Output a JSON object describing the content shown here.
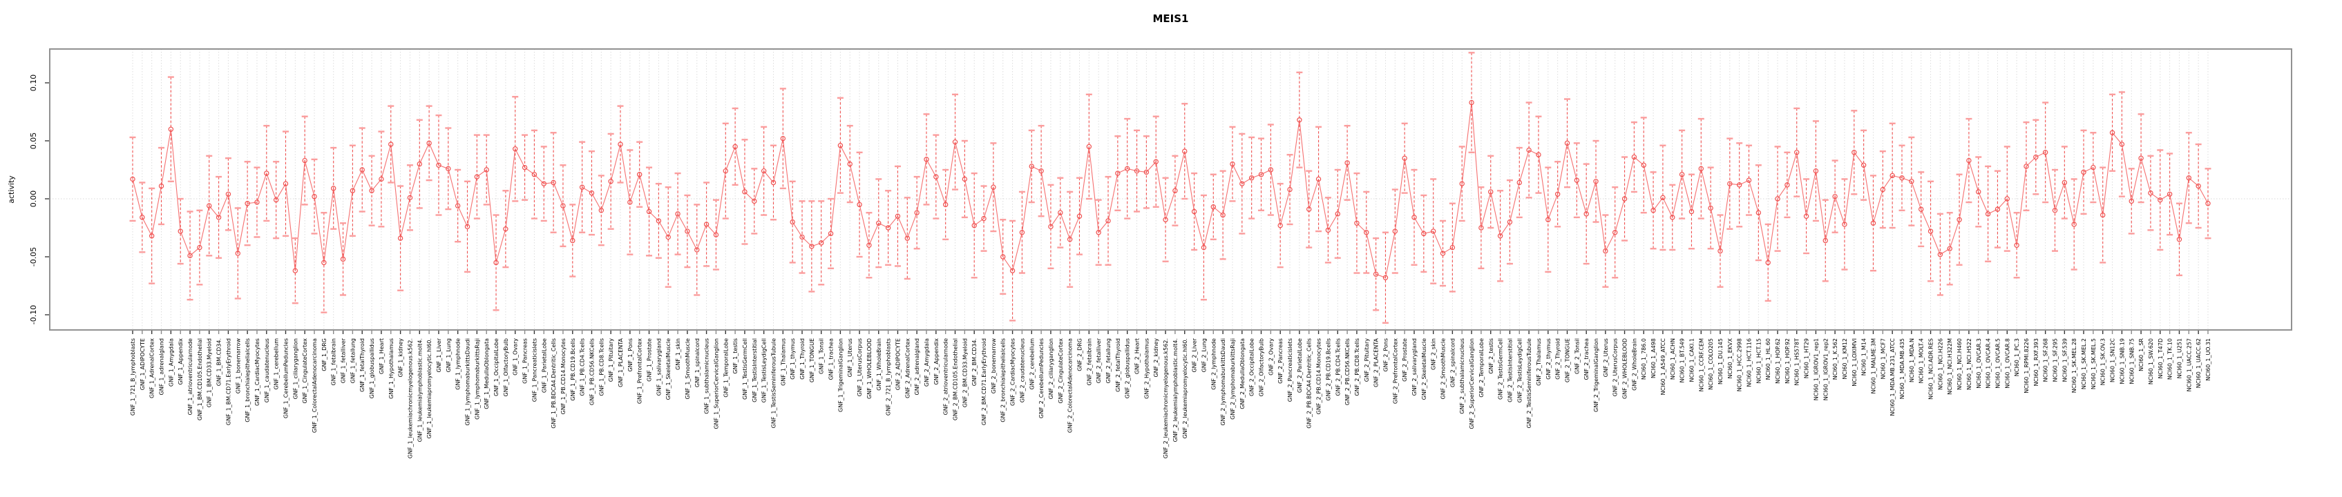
{
  "title": "MEIS1",
  "y_axis": {
    "label": "activity",
    "tick_labels": [
      "0.10",
      "0.05",
      "0.00",
      "-0.05",
      "-0.10"
    ],
    "tick_values": [
      0.1,
      0.05,
      0.0,
      -0.05,
      -0.1
    ]
  },
  "colors": {
    "point_red": "#f0504f",
    "whisker_dash_red": "#f0504f",
    "cap_salmon": "#fb9d9d",
    "series_line_red": "#f57070",
    "gridline_gray": "#dcdcdc",
    "border_gray": "#919191",
    "tick_black": "#555555",
    "background": "#ffffff"
  },
  "chart_data": {
    "type": "scatter",
    "subtype": "point-estimates-with-error-bars",
    "title": "MEIS1",
    "xlabel": "",
    "ylabel": "activity",
    "ylim": [
      -0.123,
      0.123
    ],
    "grid": "vertical-dotted-per-category",
    "zero_line": true,
    "legend": "none",
    "categories": [
      "GNF_1_721_B_lymphoblasts",
      "GNF_1_ADIPOCYTE",
      "GNF_1_AdrenalCortex",
      "GNF_1_adrenalgland",
      "GNF_1_Amygdala",
      "GNF_1_Appendix",
      "GNF_1_atrioventricularnode",
      "GNF_1_BM.CD105.Endothelial",
      "GNF_1_BM.CD33.Myeloid",
      "GNF_1_BM.CD34.",
      "GNF_1_BM.CD71.EarlyErythroid",
      "GNF_1_bonemarrow",
      "GNF_1_bronchialepithelialcells",
      "GNF_1_CardiacMyocytes",
      "GNF_1_caudatenucleus",
      "GNF_1_cerebellum",
      "GNF_1_CerebellumPeduncles",
      "GNF_1_ciliaryganglion",
      "GNF_1_CingulateCortex",
      "GNF_1_ColorectalAdenocarcinoma",
      "GNF_1_DRG",
      "GNF_1_fetalbrain",
      "GNF_1_fetalliver",
      "GNF_1_fetallung",
      "GNF_1_fetalThyroid",
      "GNF_1_globuspallidus",
      "GNF_1_Heart",
      "GNF_1_Hypothalamus",
      "GNF_1_kidney",
      "GNF_1_leukemiachronicmyelogenous.k562.",
      "GNF_1_leukemialymphoblastic.molt4.",
      "GNF_1_leukemiapromyelocytic.hl60.",
      "GNF_1_Liver",
      "GNF_1_Lung",
      "GNF_1_lymphnode",
      "GNF_1_lymphomaburkittsDaudi",
      "GNF_1_lymphomaburkittsRaji",
      "GNF_1_MedullaOblongata",
      "GNF_1_OccipitalLobe",
      "GNF_1_OlfactoryBulb",
      "GNF_1_Ovary",
      "GNF_1_Pancreas",
      "GNF_1_Pancreaticislets",
      "GNF_1_ParietalLobe",
      "GNF_1_PB.BDCA4.Dentritic_Cells",
      "GNF_1_PB.CD14.Monocytes",
      "GNF_1_PB.CD19.Bcells",
      "GNF_1_PB.CD4.Tcells",
      "GNF_1_PB.CD56.NKCells",
      "GNF_1_PB.CD8.Tcells",
      "GNF_1_Pituitary",
      "GNF_1_PLACENTA",
      "GNF_1_Pons",
      "GNF_1_PrefrontalCortex",
      "GNF_1_Prostate",
      "GNF_1_salivarygland",
      "GNF_1_SkeletalMuscle",
      "GNF_1_skin",
      "GNF_1_SmoothMuscle",
      "GNF_1_spinalcord",
      "GNF_1_subthalamicnucleus",
      "GNF_1_SuperiorCervicalGanglion",
      "GNF_1_TemporalLobe",
      "GNF_1_testis",
      "GNF_1_TestisGermCell",
      "GNF_1_TestisInterstitial",
      "GNF_1_TestisLeydigCell",
      "GNF_1_TestisSeminiferousTubule",
      "GNF_1_Thalamus",
      "GNF_1_thymus",
      "GNF_1_Thyroid",
      "GNF_1_TONGUE",
      "GNF_1_Tonsil",
      "GNF_1_trachea",
      "GNF_1_TrigeminalGanglion",
      "GNF_1_Uterus",
      "GNF_1_UterusCorpus",
      "GNF_1_WHOLEBLOOD",
      "GNF_1_WholeBrain",
      "GNF_2_721_B_lymphoblasts",
      "GNF_2_ADIPOCYTE",
      "GNF_2_AdrenalCortex",
      "GNF_2_adrenalgland",
      "GNF_2_Amygdala",
      "GNF_2_Appendix",
      "GNF_2_atrioventricularnode",
      "GNF_2_BM.CD105.Endothelial",
      "GNF_2_BM.CD33.Myeloid",
      "GNF_2_BM.CD34.",
      "GNF_2_BM.CD71.EarlyErythroid",
      "GNF_2_bonemarrow",
      "GNF_2_bronchialepithelialcells",
      "GNF_2_CardiacMyocytes",
      "GNF_2_caudatenucleus",
      "GNF_2_cerebellum",
      "GNF_2_CerebellumPeduncles",
      "GNF_2_ciliaryganglion",
      "GNF_2_CingulateCortex",
      "GNF_2_ColorectalAdenocarcinoma",
      "GNF_2_DRG",
      "GNF_2_fetalbrain",
      "GNF_2_fetalliver",
      "GNF_2_fetallung",
      "GNF_2_fetalThyroid",
      "GNF_2_globuspallidus",
      "GNF_2_Heart",
      "GNF_2_Hypothalamus",
      "GNF_2_kidney",
      "GNF_2_leukemiachronicmyelogenous.k562.",
      "GNF_2_leukemialymphoblastic.molt4.",
      "GNF_2_leukemiapromyelocytic.hl60.",
      "GNF_2_Liver",
      "GNF_2_Lung",
      "GNF_2_lymphnode",
      "GNF_2_lymphomaburkittsDaudi",
      "GNF_2_lymphomaburkittsRaji",
      "GNF_2_MedullaOblongata",
      "GNF_2_OccipitalLobe",
      "GNF_2_OlfactoryBulb",
      "GNF_2_Ovary",
      "GNF_2_Pancreas",
      "GNF_2_Pancreaticislets",
      "GNF_2_ParietalLobe",
      "GNF_2_PB.BDCA4.Dentritic_Cells",
      "GNF_2_PB.CD14.Monocytes",
      "GNF_2_PB.CD19.Bcells",
      "GNF_2_PB.CD4.Tcells",
      "GNF_2_PB.CD56.NKCells",
      "GNF_2_PB.CD8.Tcells",
      "GNF_2_Pituitary",
      "GNF_2_PLACENTA",
      "GNF_2_Pons",
      "GNF_2_PrefrontalCortex",
      "GNF_2_Prostate",
      "GNF_2_salivarygland",
      "GNF_2_SkeletalMuscle",
      "GNF_2_skin",
      "GNF_2_SmoothMuscle",
      "GNF_2_spinalcord",
      "GNF_2_subthalamicnucleus",
      "GNF_2_SuperiorCervicalGanglion",
      "GNF_2_TemporalLobe",
      "GNF_2_testis",
      "GNF_2_TestisGermCell",
      "GNF_2_TestisInterstitial",
      "GNF_2_TestisLeydigCell",
      "GNF_2_TestisSeminiferousTubule",
      "GNF_2_Thalamus",
      "GNF_2_thymus",
      "GNF_2_Thyroid",
      "GNF_2_TONGUE",
      "GNF_2_Tonsil",
      "GNF_2_trachea",
      "GNF_2_TrigeminalGanglion",
      "GNF_2_Uterus",
      "GNF_2_UterusCorpus",
      "GNF_2_WHOLEBLOOD",
      "GNF_2_WholeBrain",
      "NCI60_1_786.0",
      "NCI60_1_A498",
      "NCI60_1_A549_ATCC",
      "NCI60_1_ACHN",
      "NCI60_1_BT.549",
      "NCI60_1_CAKI.1",
      "NCI60_1_CCRF.CEM",
      "NCI60_1_COLO205",
      "NCI60_1_DU.145",
      "NCI60_1_EKVX",
      "NCI60_1_HCC.2998",
      "NCI60_1_HCT.116",
      "NCI60_1_HCT.15",
      "NCI60_1_HL.60",
      "NCI60_1_HOP.62",
      "NCI60_1_HOP.92",
      "NCI60_1_HS578T",
      "NCI60_1_HT29",
      "NCI60_1_IGROV1_rep1",
      "NCI60_1_IGROV1_rep2",
      "NCI60_1_K.562",
      "NCI60_1_KM12",
      "NCI60_1_LOXIMVI",
      "NCI60_1_M14",
      "NCI60_1_MALME.3M",
      "NCI60_1_MCF7",
      "NCI60_1_MDA.MB.231_ATCC",
      "NCI60_1_MDA.MB.435",
      "NCI60_1_MDA.N",
      "NCI60_1_MOLT.4",
      "NCI60_1_NCI.ADR.RES",
      "NCI60_1_NCI.H226",
      "NCI60_1_NCI.H322M",
      "NCI60_1_NCI.H460",
      "NCI60_1_NCI.H522",
      "NCI60_1_OVCAR.3",
      "NCI60_1_OVCAR.4",
      "NCI60_1_OVCAR.5",
      "NCI60_1_OVCAR.8",
      "NCI60_1_PC.3",
      "NCI60_1_RPMI.8226",
      "NCI60_1_RXF.393",
      "NCI60_1_SF.268",
      "NCI60_1_SF.295",
      "NCI60_1_SF.539",
      "NCI60_1_SK.MEL.28",
      "NCI60_1_SK.MEL.2",
      "NCI60_1_SK.MEL.5",
      "NCI60_1_SK.OV.3",
      "NCI60_1_SN12C",
      "NCI60_1_SNB.19",
      "NCI60_1_SNB.75",
      "NCI60_1_SR",
      "NCI60_1_SW.620",
      "NCI60_1_T47D",
      "NCI60_1_TK.10",
      "NCI60_1_U251",
      "NCI60_1_UACC.257",
      "NCI60_1_UACC.62",
      "NCI60_1_UO.31"
    ],
    "values": [
      0.017,
      -0.016,
      -0.032,
      0.011,
      0.06,
      -0.028,
      -0.049,
      -0.042,
      -0.006,
      -0.016,
      0.004,
      -0.047,
      -0.004,
      -0.003,
      0.022,
      -0.001,
      0.013,
      -0.062,
      0.033,
      0.002,
      -0.055,
      0.009,
      -0.052,
      0.007,
      0.025,
      0.007,
      0.017,
      0.047,
      -0.034,
      0.001,
      0.03,
      0.048,
      0.029,
      0.026,
      -0.006,
      -0.024,
      0.019,
      0.025,
      -0.055,
      -0.026,
      0.043,
      0.027,
      0.021,
      0.013,
      0.014,
      -0.006,
      -0.036,
      0.01,
      0.005,
      -0.01,
      0.015,
      0.047,
      -0.003,
      0.021,
      -0.011,
      -0.019,
      -0.033,
      -0.013,
      -0.028,
      -0.044,
      -0.022,
      -0.031,
      0.024,
      0.045,
      0.006,
      -0.002,
      0.024,
      0.014,
      0.052,
      -0.02,
      -0.033,
      -0.041,
      -0.038,
      -0.03,
      0.046,
      0.03,
      -0.005,
      -0.04,
      -0.021,
      -0.025,
      -0.015,
      -0.034,
      -0.012,
      0.034,
      0.019,
      -0.005,
      0.049,
      0.017,
      -0.023,
      -0.017,
      0.01,
      -0.05,
      -0.062,
      -0.029,
      0.028,
      0.024,
      -0.024,
      -0.012,
      -0.035,
      -0.015,
      0.045,
      -0.029,
      -0.019,
      0.022,
      0.026,
      0.024,
      0.023,
      0.032,
      -0.018,
      0.007,
      0.041,
      -0.011,
      -0.042,
      -0.007,
      -0.014,
      0.03,
      0.013,
      0.018,
      0.021,
      0.025,
      -0.023,
      0.008,
      0.068,
      -0.009,
      0.017,
      -0.027,
      -0.013,
      0.031,
      -0.021,
      -0.029,
      -0.065,
      -0.068,
      -0.028,
      0.035,
      -0.016,
      -0.03,
      -0.028,
      -0.047,
      -0.042,
      0.013,
      0.083,
      -0.025,
      0.006,
      -0.032,
      -0.02,
      0.014,
      0.042,
      0.038,
      -0.018,
      0.004,
      0.048,
      0.016,
      -0.013,
      0.015,
      -0.045,
      -0.029,
      0.0,
      0.036,
      0.029,
      -0.01,
      0.001,
      -0.016,
      0.021,
      -0.011,
      0.026,
      -0.008,
      -0.045,
      0.013,
      0.012,
      0.016,
      -0.012,
      -0.055,
      0.0,
      0.012,
      0.04,
      -0.015,
      0.024,
      -0.036,
      0.002,
      -0.022,
      0.04,
      0.029,
      -0.021,
      0.008,
      0.02,
      0.018,
      0.015,
      -0.009,
      -0.028,
      -0.048,
      -0.043,
      -0.018,
      0.033,
      0.006,
      -0.013,
      -0.009,
      0.0,
      -0.04,
      0.028,
      0.036,
      0.04,
      -0.01,
      0.014,
      -0.022,
      0.023,
      0.027,
      -0.014,
      0.057,
      0.047,
      -0.002,
      0.035,
      0.005,
      -0.001,
      0.004,
      -0.035,
      0.018,
      0.011,
      -0.004
    ],
    "ci_halfwidth": [
      0.036,
      0.03,
      0.041,
      0.033,
      0.045,
      0.028,
      0.038,
      0.032,
      0.043,
      0.035,
      0.031,
      0.039,
      0.036,
      0.03,
      0.041,
      0.033,
      0.045,
      0.028,
      0.038,
      0.032,
      0.043,
      0.035,
      0.031,
      0.039,
      0.036,
      0.03,
      0.041,
      0.033,
      0.045,
      0.028,
      0.038,
      0.032,
      0.043,
      0.035,
      0.031,
      0.039,
      0.036,
      0.03,
      0.041,
      0.033,
      0.045,
      0.028,
      0.038,
      0.032,
      0.043,
      0.035,
      0.031,
      0.039,
      0.036,
      0.03,
      0.041,
      0.033,
      0.045,
      0.028,
      0.038,
      0.032,
      0.043,
      0.035,
      0.031,
      0.039,
      0.036,
      0.03,
      0.041,
      0.033,
      0.045,
      0.028,
      0.038,
      0.032,
      0.043,
      0.035,
      0.031,
      0.039,
      0.036,
      0.03,
      0.041,
      0.033,
      0.045,
      0.028,
      0.038,
      0.032,
      0.043,
      0.035,
      0.031,
      0.039,
      0.036,
      0.03,
      0.041,
      0.033,
      0.045,
      0.028,
      0.038,
      0.032,
      0.043,
      0.035,
      0.031,
      0.039,
      0.036,
      0.03,
      0.041,
      0.033,
      0.045,
      0.028,
      0.038,
      0.032,
      0.043,
      0.035,
      0.031,
      0.039,
      0.036,
      0.03,
      0.041,
      0.033,
      0.045,
      0.028,
      0.038,
      0.032,
      0.043,
      0.035,
      0.031,
      0.039,
      0.036,
      0.03,
      0.041,
      0.033,
      0.045,
      0.028,
      0.038,
      0.032,
      0.043,
      0.035,
      0.031,
      0.039,
      0.036,
      0.03,
      0.041,
      0.033,
      0.045,
      0.028,
      0.038,
      0.032,
      0.043,
      0.035,
      0.031,
      0.039,
      0.036,
      0.03,
      0.041,
      0.033,
      0.045,
      0.028,
      0.038,
      0.032,
      0.043,
      0.035,
      0.031,
      0.039,
      0.036,
      0.03,
      0.041,
      0.033,
      0.045,
      0.028,
      0.038,
      0.032,
      0.043,
      0.035,
      0.031,
      0.039,
      0.036,
      0.03,
      0.041,
      0.033,
      0.045,
      0.028,
      0.038,
      0.032,
      0.043,
      0.035,
      0.031,
      0.039,
      0.036,
      0.03,
      0.041,
      0.033,
      0.045,
      0.028,
      0.038,
      0.032,
      0.043,
      0.035,
      0.031,
      0.039,
      0.036,
      0.03,
      0.041,
      0.033,
      0.045,
      0.028,
      0.038,
      0.032,
      0.043,
      0.035,
      0.031,
      0.039,
      0.036,
      0.03,
      0.041,
      0.033,
      0.045,
      0.028,
      0.038,
      0.032,
      0.043,
      0.035,
      0.031,
      0.039,
      0.036,
      0.03
    ]
  }
}
